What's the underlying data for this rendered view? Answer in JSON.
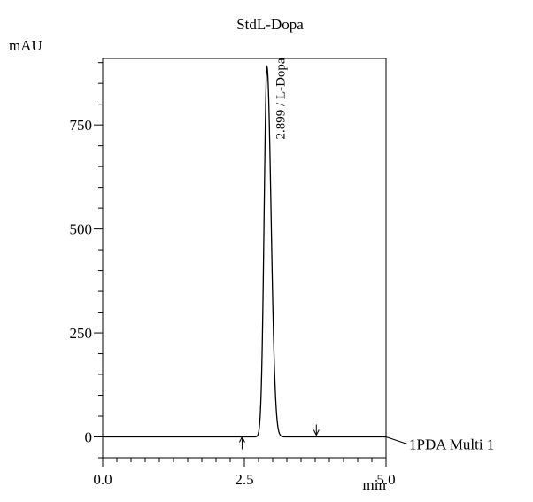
{
  "chart_data": {
    "type": "line",
    "title": "StdL-Dopa",
    "ylabel": "mAU",
    "xlabel": "min",
    "xlim": [
      0,
      5
    ],
    "ylim": [
      -50,
      910
    ],
    "x_ticks": [
      {
        "value": 0.0,
        "label": "0.0"
      },
      {
        "value": 2.5,
        "label": "2.5"
      },
      {
        "value": 5.0,
        "label": "5.0"
      }
    ],
    "y_ticks": [
      {
        "value": 0,
        "label": "0"
      },
      {
        "value": 250,
        "label": "250"
      },
      {
        "value": 500,
        "label": "500"
      },
      {
        "value": 750,
        "label": "750"
      }
    ],
    "series": [
      {
        "name": "1PDA Multi 1",
        "peak": {
          "x": 2.899,
          "y": 890,
          "sigma_left": 0.05,
          "sigma_right": 0.072
        },
        "baseline": 0
      }
    ],
    "annotations": [
      {
        "text": "2.899 / L-Dopa",
        "x": 2.899
      }
    ],
    "integration_markers": [
      {
        "x": 2.46,
        "direction": "up"
      },
      {
        "x": 3.77,
        "direction": "down"
      }
    ],
    "colors": {
      "line": "#000000",
      "axis": "#000000"
    }
  }
}
